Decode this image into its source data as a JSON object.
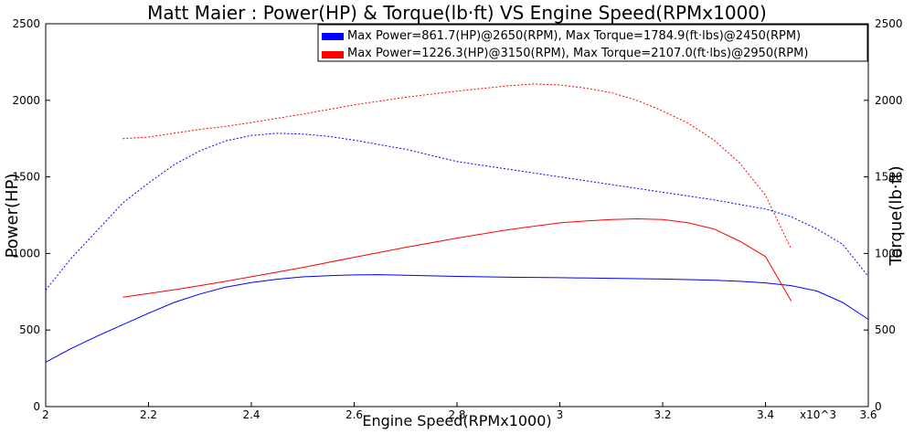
{
  "chart_data": {
    "type": "line",
    "title": "Matt Maier : Power(HP) & Torque(lb·ft) VS Engine Speed(RPMx1000)",
    "xlabel": "Engine Speed(RPMx1000)",
    "ylabel": "Power(HP)",
    "y2label": "Torque(lb·ft)",
    "x_multiplier_label": "x10^3",
    "xlim": [
      2.0,
      3.6
    ],
    "ylim": [
      0,
      2500
    ],
    "y2lim": [
      0,
      2500
    ],
    "x_ticks": [
      "2",
      "2.2",
      "2.4",
      "2.6",
      "2.8",
      "3",
      "3.2",
      "3.4",
      "3.6"
    ],
    "y_ticks": [
      "0",
      "500",
      "1000",
      "1500",
      "2000",
      "2500"
    ],
    "y2_ticks": [
      "0",
      "500",
      "1000",
      "1500",
      "2000",
      "2500"
    ],
    "grid": false,
    "legend_position": "top-right",
    "colors": {
      "blue": "#0000ff",
      "red": "#ff0000"
    },
    "legend": [
      {
        "label": "Max Power=861.7(HP)@2650(RPM), Max Torque=1784.9(ft·lbs)@2450(RPM)",
        "color": "#0000ff"
      },
      {
        "label": "Max Power=1226.3(HP)@3150(RPM), Max Torque=2107.0(ft·lbs)@2950(RPM)",
        "color": "#ff0000"
      }
    ],
    "series": [
      {
        "axis": "power",
        "color": "#0000ff",
        "dash": "solid",
        "x": [
          2.0,
          2.05,
          2.1,
          2.15,
          2.2,
          2.25,
          2.3,
          2.35,
          2.4,
          2.45,
          2.5,
          2.55,
          2.6,
          2.65,
          2.7,
          2.8,
          2.9,
          3.0,
          3.1,
          3.2,
          3.3,
          3.35,
          3.4,
          3.45,
          3.5,
          3.55,
          3.6
        ],
        "y": [
          290,
          380,
          460,
          535,
          610,
          680,
          735,
          780,
          810,
          832,
          847,
          855,
          860,
          861.7,
          858,
          850,
          845,
          842,
          838,
          833,
          825,
          818,
          808,
          790,
          755,
          680,
          570
        ]
      },
      {
        "axis": "torque",
        "color": "#0000ff",
        "dash": "dotted",
        "x": [
          2.0,
          2.05,
          2.1,
          2.15,
          2.2,
          2.25,
          2.3,
          2.35,
          2.4,
          2.45,
          2.5,
          2.55,
          2.6,
          2.65,
          2.7,
          2.8,
          2.9,
          3.0,
          3.1,
          3.2,
          3.3,
          3.35,
          3.4,
          3.45,
          3.5,
          3.55,
          3.6
        ],
        "y": [
          760,
          970,
          1150,
          1330,
          1460,
          1580,
          1670,
          1735,
          1770,
          1784.9,
          1780,
          1765,
          1740,
          1710,
          1680,
          1600,
          1550,
          1500,
          1450,
          1400,
          1350,
          1320,
          1290,
          1240,
          1160,
          1060,
          850
        ]
      },
      {
        "axis": "power",
        "color": "#ff0000",
        "dash": "solid",
        "x": [
          2.15,
          2.2,
          2.25,
          2.3,
          2.35,
          2.4,
          2.5,
          2.6,
          2.7,
          2.8,
          2.9,
          3.0,
          3.05,
          3.1,
          3.15,
          3.2,
          3.25,
          3.3,
          3.35,
          3.4,
          3.45
        ],
        "y": [
          715,
          738,
          763,
          790,
          818,
          848,
          908,
          975,
          1040,
          1100,
          1155,
          1200,
          1212,
          1222,
          1226.3,
          1222,
          1200,
          1160,
          1080,
          980,
          690
        ]
      },
      {
        "axis": "torque",
        "color": "#ff0000",
        "dash": "dotted",
        "x": [
          2.15,
          2.2,
          2.25,
          2.3,
          2.35,
          2.4,
          2.5,
          2.6,
          2.7,
          2.8,
          2.9,
          2.95,
          3.0,
          3.05,
          3.1,
          3.15,
          3.2,
          3.25,
          3.3,
          3.35,
          3.4,
          3.45
        ],
        "y": [
          1750,
          1760,
          1785,
          1810,
          1830,
          1855,
          1910,
          1970,
          2020,
          2060,
          2095,
          2107,
          2100,
          2080,
          2050,
          2000,
          1930,
          1850,
          1740,
          1590,
          1380,
          1030
        ]
      }
    ]
  }
}
